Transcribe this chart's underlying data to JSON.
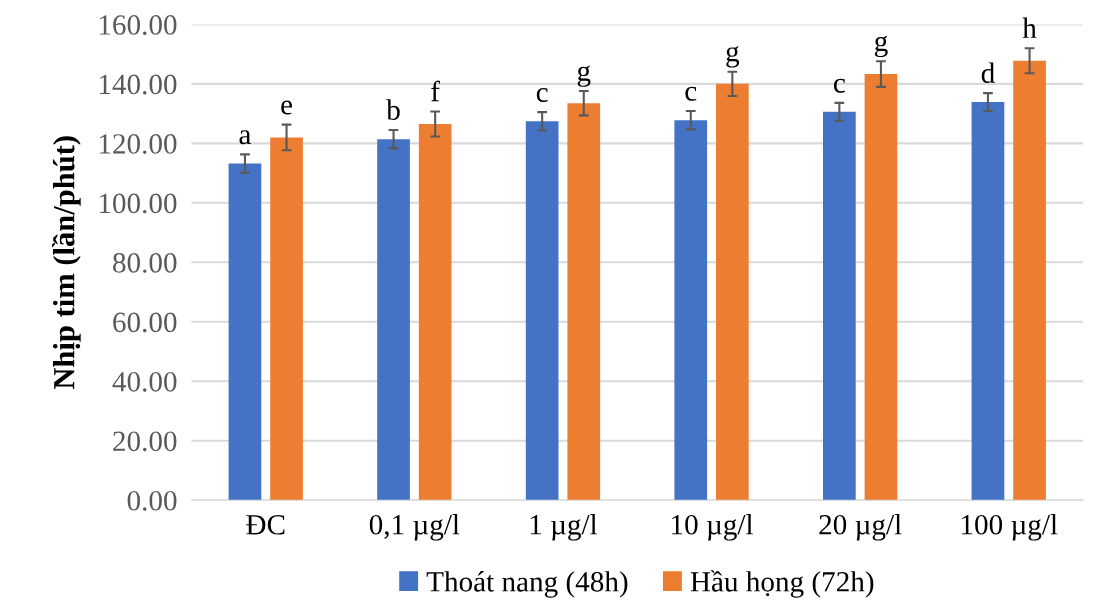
{
  "chart_data": {
    "type": "bar",
    "ylabel": "Nhịp tim (lần/phút)",
    "categories": [
      "ĐC",
      "0,1 µg/l",
      "1 µg/l",
      "10 µg/l",
      "20 µg/l",
      "100 µg/l"
    ],
    "series": [
      {
        "name": "Thoát nang (48h)",
        "color": "#4472c4",
        "values": [
          113.2,
          121.4,
          127.4,
          127.8,
          130.6,
          133.9
        ],
        "errors": [
          3.1,
          3.1,
          3.1,
          3.1,
          3.0,
          3.0
        ],
        "value_labels": [
          "a",
          "b",
          "c",
          "c",
          "c",
          "d"
        ]
      },
      {
        "name": "Hầu họng (72h)",
        "color": "#ed7d31",
        "values": [
          122.0,
          126.5,
          133.5,
          140.0,
          143.3,
          147.8
        ],
        "errors": [
          4.3,
          4.2,
          4.1,
          4.1,
          4.3,
          4.2
        ],
        "value_labels": [
          "e",
          "f",
          "g",
          "g",
          "g",
          "h"
        ]
      }
    ],
    "ylim": [
      0,
      160
    ],
    "yticks": [
      {
        "value": 0,
        "label": "0.00"
      },
      {
        "value": 20,
        "label": "20.00"
      },
      {
        "value": 40,
        "label": "40.00"
      },
      {
        "value": 60,
        "label": "60.00"
      },
      {
        "value": 80,
        "label": "80.00"
      },
      {
        "value": 100,
        "label": "100.00"
      },
      {
        "value": 120,
        "label": "120.00"
      },
      {
        "value": 140,
        "label": "140.00"
      },
      {
        "value": 160,
        "label": "160.00"
      }
    ],
    "grid": "y",
    "legend": "bottom"
  }
}
